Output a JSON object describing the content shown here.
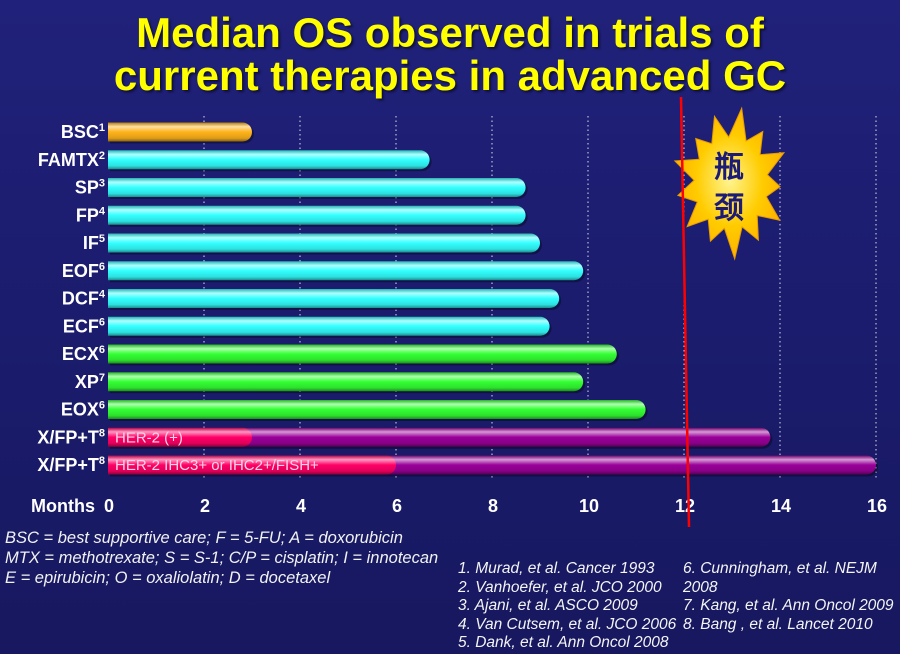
{
  "title": {
    "line1": "Median OS observed in trials of",
    "line2": "current therapies in advanced GC"
  },
  "theme": {
    "background": "#1b1c6d",
    "title_color": "#ffff00",
    "text_color": "#ffffff"
  },
  "chart_data": {
    "type": "bar",
    "xlabel": "Months",
    "xlim": [
      0,
      16
    ],
    "xticks": [
      0,
      2,
      4,
      6,
      8,
      10,
      12,
      14,
      16
    ],
    "grid": true,
    "categories": [
      {
        "name": "BSC",
        "ref": "1",
        "value": 3.0,
        "color": "#ffb31a"
      },
      {
        "name": "FAMTX",
        "ref": "2",
        "value": 6.7,
        "color": "#33ffff"
      },
      {
        "name": "SP",
        "ref": "3",
        "value": 8.7,
        "color": "#33ffff"
      },
      {
        "name": "FP",
        "ref": "4",
        "value": 8.7,
        "color": "#33ffff"
      },
      {
        "name": "IF",
        "ref": "5",
        "value": 9.0,
        "color": "#33ffff"
      },
      {
        "name": "EOF",
        "ref": "6",
        "value": 9.9,
        "color": "#33ffff"
      },
      {
        "name": "DCF",
        "ref": "4",
        "value": 9.4,
        "color": "#33ffff"
      },
      {
        "name": "ECF",
        "ref": "6",
        "value": 9.2,
        "color": "#33ffff"
      },
      {
        "name": "ECX",
        "ref": "6",
        "value": 10.6,
        "color": "#33ff33"
      },
      {
        "name": "XP",
        "ref": "7",
        "value": 9.9,
        "color": "#33ff33"
      },
      {
        "name": "EOX",
        "ref": "6",
        "value": 11.2,
        "color": "#33ff33"
      },
      {
        "name": "X/FP+T",
        "ref": "8",
        "value": 13.8,
        "color": "#990099",
        "segment": {
          "label": "HER-2 (+)",
          "value": 3.0,
          "color": "#ff0066"
        }
      },
      {
        "name": "X/FP+T",
        "ref": "8",
        "value": 16.0,
        "color": "#990099",
        "segment": {
          "label": "HER-2 IHC3+ or IHC2+/FISH+",
          "value": 6.0,
          "color": "#ff0066"
        }
      }
    ],
    "reference_line": {
      "x": 12,
      "color": "#ff0000"
    },
    "callout": {
      "text": [
        "瓶",
        "颈"
      ],
      "color": "#ffcc00",
      "text_color": "#1c1c78"
    }
  },
  "footnotes": [
    "BSC = best supportive care; F = 5-FU; A = doxorubicin",
    "MTX = methotrexate; S = S-1; C/P = cisplatin; I = innotecan",
    "E = epirubicin; O = oxaliolatin; D = docetaxel"
  ],
  "references": {
    "left": [
      "1. Murad, et al. Cancer 1993",
      "2. Vanhoefer, et al. JCO 2000",
      "3. Ajani, et al. ASCO 2009",
      "4. Van Cutsem, et al. JCO 2006",
      "5. Dank, et al. Ann Oncol 2008"
    ],
    "right": [
      "6. Cunningham, et al. NEJM",
      "2008",
      "7. Kang, et al. Ann Oncol 2009",
      "8. Bang , et al. Lancet 2010"
    ]
  }
}
